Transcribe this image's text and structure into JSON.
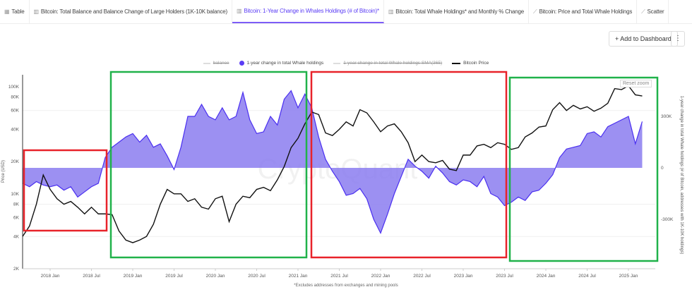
{
  "tabs": [
    {
      "label": "Table",
      "icon": "table-icon"
    },
    {
      "label": "Bitcoin: Total Balance and Balance Change of Large Holders (1K-10K balance)",
      "icon": "chart-icon"
    },
    {
      "label": "Bitcoin: 1-Year Change in Whales Holdings (# of Bitcoin)*",
      "icon": "chart-icon",
      "active": true
    },
    {
      "label": "Bitcoin: Total Whale Holdings* and Monthly % Change",
      "icon": "chart-icon"
    },
    {
      "label": "Bitcoin: Price and Total Whale Holdings",
      "icon": "line-chart-icon"
    },
    {
      "label": "Scatter",
      "icon": "line-chart-icon"
    }
  ],
  "toolbar": {
    "add_label": "Add to Dashboard",
    "more": "⋮"
  },
  "reset_zoom": "Reset zoom",
  "watermark": "CryptoQuant",
  "footnote": "*Excludes addresses from exchanges and mining pools",
  "chart_data": {
    "type": "line",
    "legend": [
      {
        "name": "balance",
        "hidden": true
      },
      {
        "name": "1-year change in total Whale holdings",
        "hidden": false,
        "color": "#5b3df5"
      },
      {
        "name": "1-year change in total Whale holdings SMA(365)",
        "hidden": true
      },
      {
        "name": "Bitcoin Price",
        "hidden": false,
        "color": "#111111"
      }
    ],
    "legend_position": "top",
    "x_ticks": [
      "2018 Jan",
      "2018 Jul",
      "2019 Jan",
      "2019 Jul",
      "2020 Jan",
      "2020 Jul",
      "2021 Jan",
      "2021 Jul",
      "2022 Jan",
      "2022 Jul",
      "2023 Jan",
      "2023 Jul",
      "2024 Jan",
      "2024 Jul",
      "2025 Jan"
    ],
    "y_left": {
      "label": "Price (USD)",
      "scale": "log",
      "ticks": [
        "2K",
        "4K",
        "6K",
        "8K",
        "10K",
        "20K",
        "40K",
        "60K",
        "80K",
        "100K"
      ],
      "range": [
        2000,
        120000
      ]
    },
    "y_right": {
      "label": "1-year change in total Whale holdings (# of Bitcoin, addresses with 1K-10K holdings)",
      "ticks": [
        "-300K",
        "0",
        "300K"
      ],
      "range": [
        -450000,
        450000
      ]
    },
    "x": [
      "2017-09",
      "2017-10",
      "2017-11",
      "2017-12",
      "2018-01",
      "2018-02",
      "2018-03",
      "2018-04",
      "2018-05",
      "2018-06",
      "2018-07",
      "2018-08",
      "2018-09",
      "2018-10",
      "2018-11",
      "2018-12",
      "2019-01",
      "2019-02",
      "2019-03",
      "2019-04",
      "2019-05",
      "2019-06",
      "2019-07",
      "2019-08",
      "2019-09",
      "2019-10",
      "2019-11",
      "2019-12",
      "2020-01",
      "2020-02",
      "2020-03",
      "2020-04",
      "2020-05",
      "2020-06",
      "2020-07",
      "2020-08",
      "2020-09",
      "2020-10",
      "2020-11",
      "2020-12",
      "2021-01",
      "2021-02",
      "2021-03",
      "2021-04",
      "2021-05",
      "2021-06",
      "2021-07",
      "2021-08",
      "2021-09",
      "2021-10",
      "2021-11",
      "2021-12",
      "2022-01",
      "2022-02",
      "2022-03",
      "2022-04",
      "2022-05",
      "2022-06",
      "2022-07",
      "2022-08",
      "2022-09",
      "2022-10",
      "2022-11",
      "2022-12",
      "2023-01",
      "2023-02",
      "2023-03",
      "2023-04",
      "2023-05",
      "2023-06",
      "2023-07",
      "2023-08",
      "2023-09",
      "2023-10",
      "2023-11",
      "2023-12",
      "2024-01",
      "2024-02",
      "2024-03",
      "2024-04",
      "2024-05",
      "2024-06",
      "2024-07",
      "2024-08",
      "2024-09",
      "2024-10",
      "2024-11",
      "2024-12",
      "2025-01",
      "2025-02",
      "2025-03"
    ],
    "series": [
      {
        "name": "1-year change in total Whale holdings",
        "axis": "right",
        "type": "area",
        "values": [
          -90000,
          -110000,
          -80000,
          -100000,
          -110000,
          -100000,
          -130000,
          -110000,
          -170000,
          -140000,
          -110000,
          -90000,
          60000,
          120000,
          150000,
          180000,
          200000,
          150000,
          190000,
          120000,
          140000,
          70000,
          -10000,
          120000,
          300000,
          300000,
          370000,
          300000,
          280000,
          350000,
          280000,
          300000,
          440000,
          280000,
          200000,
          210000,
          300000,
          250000,
          400000,
          450000,
          350000,
          430000,
          350000,
          180000,
          50000,
          -20000,
          -80000,
          -160000,
          -150000,
          -120000,
          -180000,
          -300000,
          -380000,
          -270000,
          -150000,
          -50000,
          50000,
          10000,
          -20000,
          -60000,
          10000,
          -30000,
          -80000,
          -100000,
          -70000,
          -80000,
          -110000,
          -50000,
          -150000,
          -170000,
          -220000,
          -200000,
          -170000,
          -190000,
          -140000,
          -130000,
          -90000,
          -40000,
          60000,
          110000,
          120000,
          130000,
          200000,
          210000,
          180000,
          240000,
          260000,
          280000,
          300000,
          140000,
          270000
        ]
      },
      {
        "name": "Bitcoin Price",
        "axis": "left",
        "type": "line",
        "values": [
          4000,
          5000,
          8000,
          15000,
          11000,
          9000,
          8000,
          8500,
          7500,
          6500,
          7500,
          6500,
          6500,
          6400,
          4500,
          3700,
          3500,
          3700,
          4000,
          5200,
          8000,
          11000,
          10000,
          10000,
          8500,
          9000,
          7500,
          7200,
          9000,
          9500,
          5500,
          8000,
          9500,
          9200,
          11000,
          11500,
          10700,
          13500,
          18000,
          27000,
          33000,
          45000,
          58000,
          55000,
          37000,
          35000,
          40000,
          47000,
          43000,
          61000,
          57000,
          47000,
          38000,
          43000,
          45000,
          38000,
          30000,
          20000,
          23000,
          20000,
          19500,
          20500,
          17000,
          16500,
          23000,
          23000,
          28000,
          29000,
          27000,
          30000,
          29000,
          26000,
          27000,
          34000,
          37000,
          42000,
          43000,
          61000,
          71000,
          60000,
          67000,
          62000,
          65000,
          59000,
          63000,
          70000,
          96000,
          94000,
          102000,
          84000,
          82000
        ]
      }
    ]
  }
}
